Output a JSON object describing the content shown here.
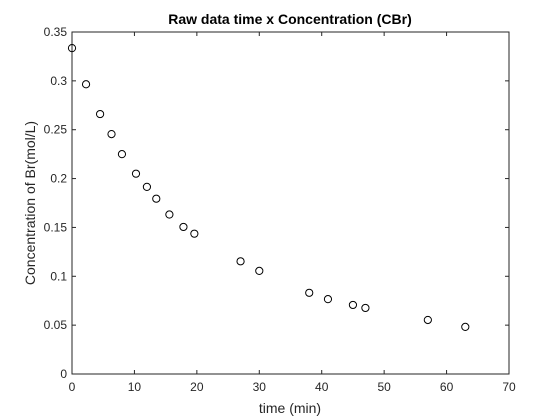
{
  "chart_data": {
    "type": "scatter",
    "title": "Raw data time x Concentration (CBr)",
    "xlabel": "time (min)",
    "ylabel": "Concentration of Br(mol/L)",
    "xlim": [
      0,
      70
    ],
    "ylim": [
      0,
      0.35
    ],
    "xticks": [
      0,
      10,
      20,
      30,
      40,
      50,
      60,
      70
    ],
    "xtick_labels": [
      "0",
      "10",
      "20",
      "30",
      "40",
      "50",
      "60",
      "70"
    ],
    "yticks": [
      0,
      0.05,
      0.1,
      0.15,
      0.2,
      0.25,
      0.3,
      0.35
    ],
    "ytick_labels": [
      "0",
      "0.05",
      "0.1",
      "0.15",
      "0.2",
      "0.25",
      "0.3",
      "0.35"
    ],
    "grid": false,
    "marker": "open-circle",
    "marker_color": "#000000",
    "axis_color": "#262626",
    "series": [
      {
        "x": [
          0,
          2.25,
          4.5,
          6.33,
          8,
          10.25,
          12,
          13.5,
          15.6,
          17.85,
          19.6,
          27,
          30,
          38,
          41,
          45,
          47,
          57,
          63
        ],
        "y": [
          0.3335,
          0.2965,
          0.266,
          0.2455,
          0.225,
          0.205,
          0.1915,
          0.1794,
          0.1632,
          0.1505,
          0.1436,
          0.1153,
          0.1055,
          0.0831,
          0.0766,
          0.0707,
          0.0676,
          0.0553,
          0.0482
        ]
      }
    ]
  }
}
